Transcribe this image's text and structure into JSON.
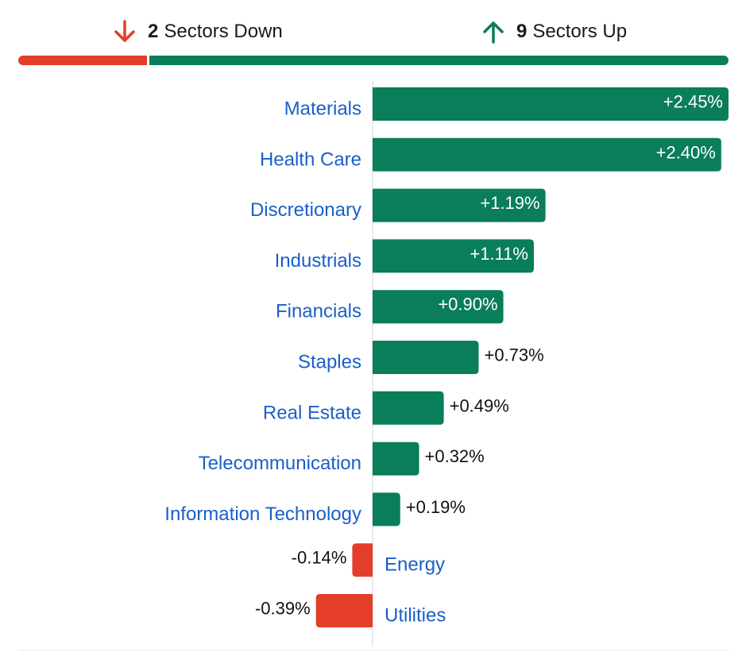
{
  "summary": {
    "down_count": "2",
    "down_text": "Sectors Down",
    "up_count": "9",
    "up_text": "Sectors Up",
    "down_icon": "arrow-down-icon",
    "up_icon": "arrow-up-icon"
  },
  "colors": {
    "positive": "#0a7d5a",
    "negative": "#e43d2a",
    "label": "#1a5fc8",
    "axis": "#d6d6d6"
  },
  "chart_data": {
    "type": "bar",
    "orientation": "horizontal",
    "categories": [
      "Materials",
      "Health Care",
      "Discretionary",
      "Industrials",
      "Financials",
      "Staples",
      "Real Estate",
      "Telecommunication",
      "Information Technology",
      "Energy",
      "Utilities"
    ],
    "values": [
      2.45,
      2.4,
      1.19,
      1.11,
      0.9,
      0.73,
      0.49,
      0.32,
      0.19,
      -0.14,
      -0.39
    ],
    "labels": [
      "+2.45%",
      "+2.40%",
      "+1.19%",
      "+1.11%",
      "+0.90%",
      "+0.73%",
      "+0.49%",
      "+0.32%",
      "+0.19%",
      "-0.14%",
      "-0.39%"
    ],
    "xlim": [
      -0.39,
      2.45
    ],
    "grid": false,
    "legend": "none",
    "title": "",
    "xlabel": "",
    "ylabel": ""
  }
}
